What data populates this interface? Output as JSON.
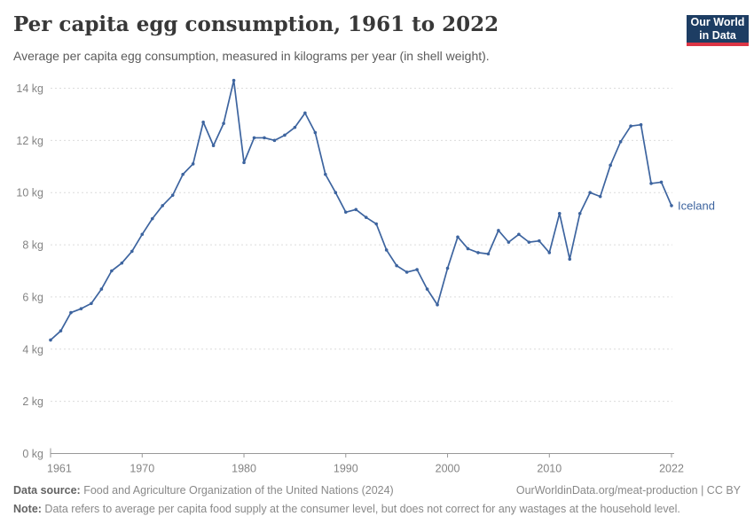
{
  "header": {
    "title": "Per capita egg consumption, 1961 to 2022",
    "subtitle": "Average per capita egg consumption, measured in kilograms per year (in shell weight).",
    "logo": {
      "line1": "Our World",
      "line2": "in Data"
    }
  },
  "chart_data": {
    "type": "line",
    "title": "Per capita egg consumption, 1961 to 2022",
    "xlabel": "",
    "ylabel": "Average per capita egg consumption (kg per year, shell weight)",
    "xlim": [
      1961,
      2022
    ],
    "ylim": [
      0,
      14
    ],
    "x_ticks": [
      1961,
      1970,
      1980,
      1990,
      2000,
      2010,
      2022
    ],
    "y_ticks": [
      0,
      2,
      4,
      6,
      8,
      10,
      12,
      14
    ],
    "y_tick_suffix": " kg",
    "grid": "horizontal-dashed",
    "legend_position": "end-of-line-label",
    "series": [
      {
        "name": "Iceland",
        "x": [
          1961,
          1962,
          1963,
          1964,
          1965,
          1966,
          1967,
          1968,
          1969,
          1970,
          1971,
          1972,
          1973,
          1974,
          1975,
          1976,
          1977,
          1978,
          1979,
          1980,
          1981,
          1982,
          1983,
          1984,
          1985,
          1986,
          1987,
          1988,
          1989,
          1990,
          1991,
          1992,
          1993,
          1994,
          1995,
          1996,
          1997,
          1998,
          1999,
          2000,
          2001,
          2002,
          2003,
          2004,
          2005,
          2006,
          2007,
          2008,
          2009,
          2010,
          2011,
          2012,
          2013,
          2014,
          2015,
          2016,
          2017,
          2018,
          2019,
          2020,
          2021,
          2022
        ],
        "values": [
          4.35,
          4.7,
          5.4,
          5.55,
          5.75,
          6.3,
          7.0,
          7.3,
          7.75,
          8.4,
          9.0,
          9.5,
          9.9,
          10.7,
          11.1,
          12.7,
          11.8,
          12.65,
          14.3,
          11.15,
          12.1,
          12.1,
          12.0,
          12.2,
          12.5,
          13.05,
          12.3,
          10.7,
          10.0,
          9.25,
          9.35,
          9.05,
          8.8,
          7.8,
          7.2,
          6.95,
          7.05,
          6.3,
          5.7,
          7.1,
          8.3,
          7.85,
          7.7,
          7.65,
          8.55,
          8.1,
          8.4,
          8.1,
          8.15,
          7.7,
          9.2,
          7.45,
          9.2,
          10.0,
          9.85,
          11.05,
          11.95,
          12.55,
          12.6,
          10.35,
          10.4,
          9.5
        ]
      }
    ],
    "entity_label": "Iceland",
    "colors": {
      "line": "#3d649f",
      "grid": "#dcdcdc",
      "axis": "#999999",
      "tick_text": "#848484",
      "entity_label": "#3d649f"
    }
  },
  "footer": {
    "source_label": "Data source:",
    "source_text": " Food and Agriculture Organization of the United Nations (2024)",
    "link_text": "OurWorldinData.org/meat-production | CC BY",
    "note_label": "Note:",
    "note_text": " Data refers to average per capita food supply at the consumer level, but does not correct for any wastages at the household level."
  }
}
